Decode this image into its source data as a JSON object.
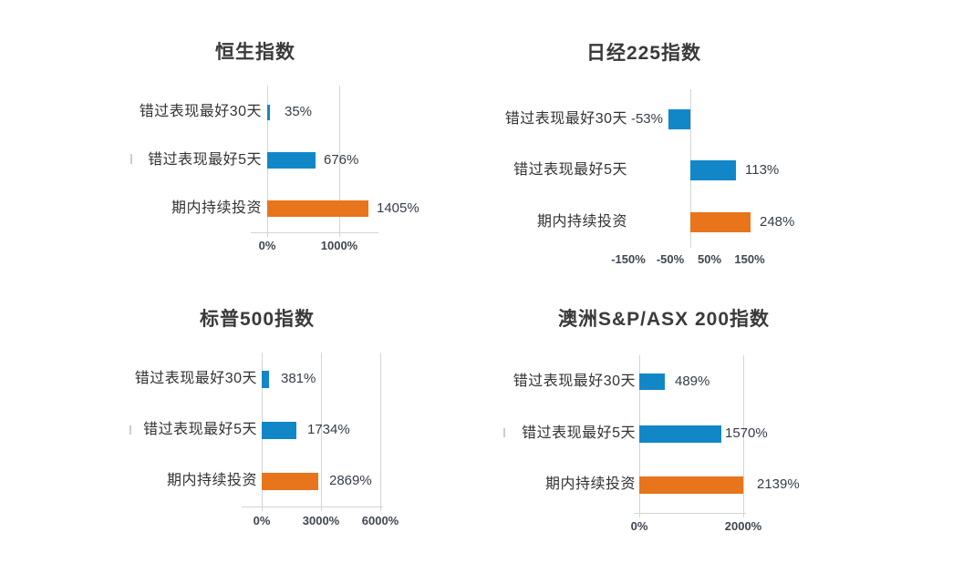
{
  "colors": {
    "blue": "#1287C8",
    "orange": "#E8741C",
    "grid": "#D4D4D4",
    "stray": "#CCCCCC",
    "title_text": "#3A3A3A",
    "category_text": "#333333",
    "value_text": "#353C49",
    "axis_text": "#3F4650",
    "background": "#FFFFFF"
  },
  "chart_data": [
    {
      "type": "bar",
      "orientation": "horizontal",
      "title": "恒生指数",
      "categories": [
        "错过表现最好30天",
        "错过表现最好5天",
        "期内持续投资"
      ],
      "values": [
        35,
        676,
        1405
      ],
      "value_labels": [
        "35%",
        "676%",
        "1405%"
      ],
      "series_colors": [
        "blue",
        "blue",
        "orange"
      ],
      "x_ticks": [
        "0%",
        "1000%"
      ],
      "x_tick_values": [
        0,
        1000
      ],
      "xlim": [
        0,
        1550
      ],
      "grid": true,
      "legend": false
    },
    {
      "type": "bar",
      "orientation": "horizontal",
      "title": "日经225指数",
      "categories": [
        "错过表现最好30天",
        "错过表现最好5天",
        "期内持续投资"
      ],
      "values": [
        -53,
        113,
        248
      ],
      "value_labels": [
        "-53%",
        "113%",
        "248%"
      ],
      "series_colors": [
        "blue",
        "blue",
        "orange"
      ],
      "x_ticks": [
        "-150%",
        "-50%",
        "50%",
        "150%"
      ],
      "x_tick_values": [
        -150,
        -50,
        50,
        150
      ],
      "xlim": [
        -170,
        150
      ],
      "grid": true,
      "legend": false
    },
    {
      "type": "bar",
      "orientation": "horizontal",
      "title": "标普500指数",
      "categories": [
        "错过表现最好30天",
        "错过表现最好5天",
        "期内持续投资"
      ],
      "values": [
        381,
        1734,
        2869
      ],
      "value_labels": [
        "381%",
        "1734%",
        "2869%"
      ],
      "series_colors": [
        "blue",
        "blue",
        "orange"
      ],
      "x_ticks": [
        "0%",
        "3000%",
        "6000%"
      ],
      "x_tick_values": [
        0,
        3000,
        6000
      ],
      "xlim": [
        0,
        6100
      ],
      "grid": true,
      "legend": false
    },
    {
      "type": "bar",
      "orientation": "horizontal",
      "title": "澳洲S&P/ASX 200指数",
      "categories": [
        "错过表现最好30天",
        "错过表现最好5天",
        "期内持续投资"
      ],
      "values": [
        489,
        1570,
        2139
      ],
      "value_labels": [
        "489%",
        "1570%",
        "2139%"
      ],
      "series_colors": [
        "blue",
        "blue",
        "orange"
      ],
      "x_ticks": [
        "0%",
        "2000%"
      ],
      "x_tick_values": [
        0,
        2000
      ],
      "xlim": [
        0,
        2000
      ],
      "grid": true,
      "legend": false
    }
  ]
}
